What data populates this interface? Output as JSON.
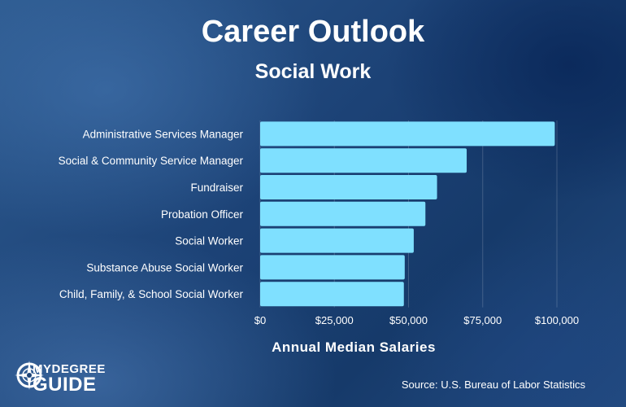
{
  "header": {
    "title": "Career Outlook",
    "subtitle": "Social Work"
  },
  "chart_data": {
    "type": "bar",
    "orientation": "horizontal",
    "categories": [
      "Administrative Services Manager",
      "Social & Community Service Manager",
      "Fundraiser",
      "Probation Officer",
      "Social Worker",
      "Substance Abuse Social Worker",
      "Child, Family, & School Social Worker"
    ],
    "values": [
      99290,
      69600,
      59610,
      55690,
      51760,
      48720,
      48430
    ],
    "xlabel": "Annual Median Salaries",
    "xlim": [
      0,
      100000
    ],
    "x_ticks": [
      "$0",
      "$25,000",
      "$50,000",
      "$75,000",
      "$100,000"
    ],
    "bar_color": "#7fe0ff",
    "grid": "vertical"
  },
  "footer": {
    "logo_line1": "MYDEGREE",
    "logo_line2": "GUIDE",
    "source": "Source: U.S. Bureau of Labor Statistics"
  }
}
